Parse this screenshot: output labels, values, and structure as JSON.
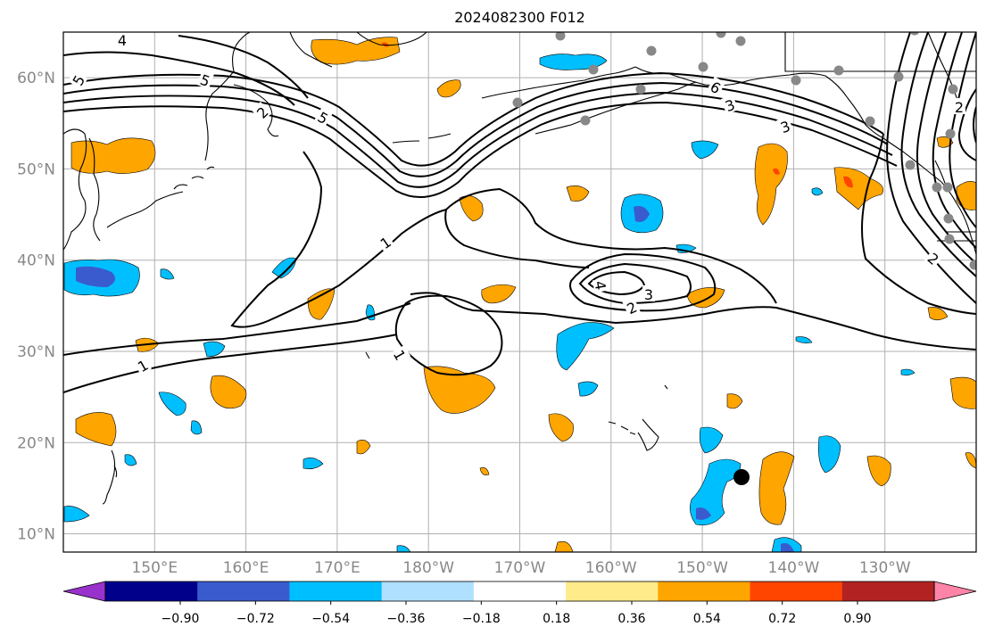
{
  "title": "2024082300 F012",
  "map": {
    "lon_ticks": [
      "150°E",
      "160°E",
      "170°E",
      "180°W",
      "170°W",
      "160°W",
      "150°W",
      "140°W",
      "130°W"
    ],
    "lat_ticks": [
      "60°N",
      "50°N",
      "40°N",
      "30°N",
      "20°N",
      "10°N"
    ],
    "extent": {
      "lon_min": 140,
      "lon_max": 240,
      "lat_min": 8,
      "lat_max": 65
    },
    "contour_labels": [
      "5",
      "4",
      "5",
      "5",
      "2",
      "3",
      "6",
      "3",
      "2",
      "1",
      "1",
      "1",
      "3",
      "2",
      "4",
      "2"
    ],
    "station_color": "#888888",
    "marker_color": "#000000"
  },
  "colorbar": {
    "colors": [
      "#9932cc",
      "#00008b",
      "#3a5bcd",
      "#00bfff",
      "#b0e0ff",
      "#ffffff",
      "#ffeb8a",
      "#ffa500",
      "#ff4500",
      "#b22222",
      "#ff85a8"
    ],
    "labels": [
      "−0.90",
      "−0.72",
      "−0.54",
      "−0.36",
      "−0.18",
      "0.18",
      "0.36",
      "0.54",
      "0.72",
      "0.90"
    ]
  }
}
